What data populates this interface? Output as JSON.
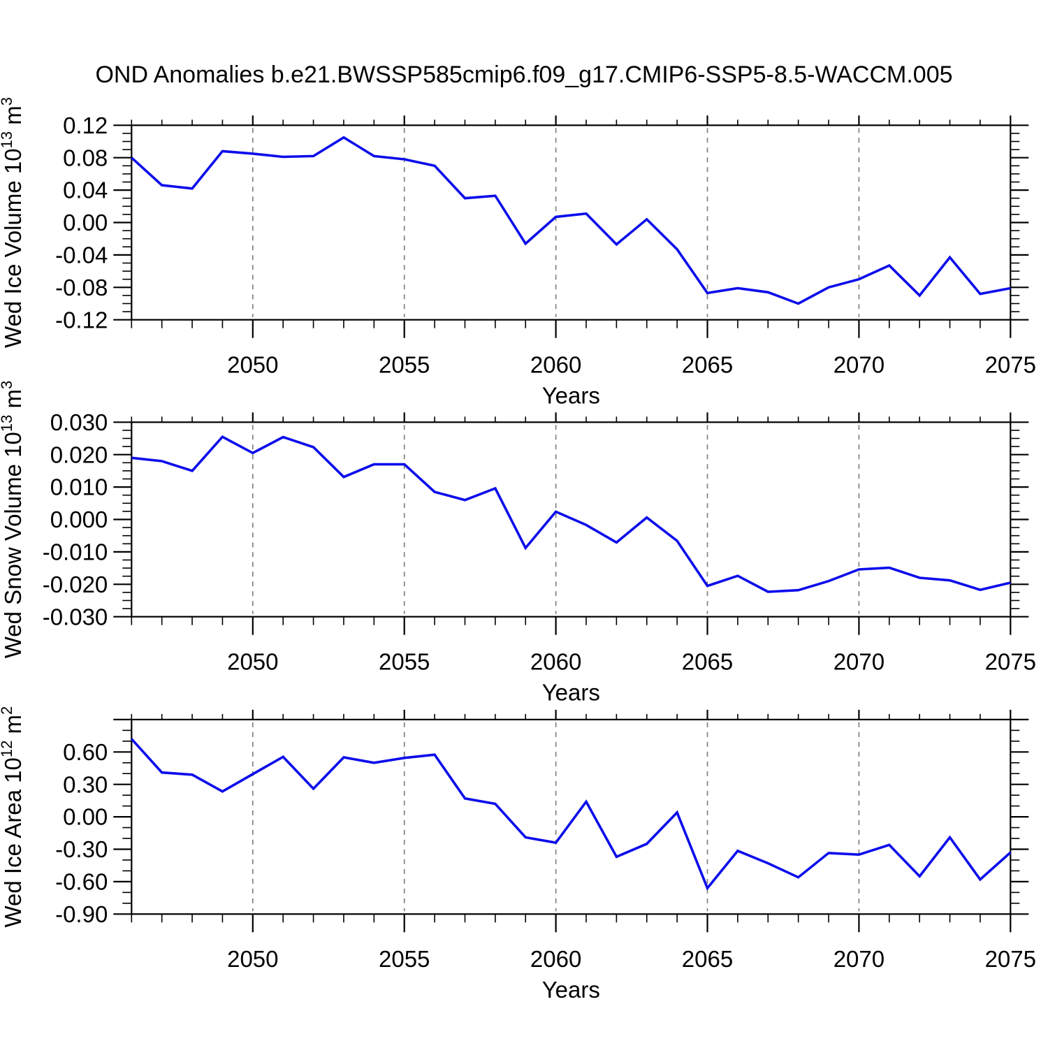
{
  "title": "OND Anomalies b.e21.BWSSP585cmip6.f09_g17.CMIP6-SSP5-8.5-WACCM.005",
  "styles": {
    "line_color": "#0d0deb",
    "grid_color": "#7a7a7a",
    "axis_color": "#000000",
    "text_color": "#000000"
  },
  "chart_data": [
    {
      "type": "line",
      "name": "wed-ice-volume",
      "ylabel_plain": "Wed Ice Volume 10^13 m^3",
      "ylabel_parts": [
        {
          "t": "Wed Ice Volume 10",
          "sup": false
        },
        {
          "t": "13",
          "sup": true
        },
        {
          "t": " m",
          "sup": false
        },
        {
          "t": "3",
          "sup": true
        }
      ],
      "xlabel": "Years",
      "x": [
        2046,
        2047,
        2048,
        2049,
        2050,
        2051,
        2052,
        2053,
        2054,
        2055,
        2056,
        2057,
        2058,
        2059,
        2060,
        2061,
        2062,
        2063,
        2064,
        2065,
        2066,
        2067,
        2068,
        2069,
        2070,
        2071,
        2072,
        2073,
        2074,
        2075
      ],
      "values": [
        0.08,
        0.046,
        0.042,
        0.088,
        0.085,
        0.081,
        0.082,
        0.105,
        0.082,
        0.078,
        0.07,
        0.03,
        0.033,
        -0.026,
        0.007,
        0.011,
        -0.027,
        0.004,
        -0.033,
        -0.087,
        -0.081,
        -0.086,
        -0.1,
        -0.08,
        -0.07,
        -0.053,
        -0.09,
        -0.043,
        -0.088,
        -0.081
      ],
      "xlim": [
        2046,
        2075
      ],
      "ylim": [
        -0.12,
        0.12
      ],
      "ytick_values": [
        0.12,
        0.08,
        0.04,
        0.0,
        -0.04,
        -0.08,
        -0.12
      ],
      "ytick_labels": [
        "0.12",
        "0.08",
        "0.04",
        "0.00",
        "-0.04",
        "-0.08",
        "-0.12"
      ],
      "yminor_step": 0.01,
      "yminor_per_major": 4,
      "xtick_values": [
        2050,
        2055,
        2060,
        2065,
        2070,
        2075
      ],
      "xtick_labels": [
        "2050",
        "2055",
        "2060",
        "2065",
        "2070",
        "2075"
      ],
      "xminor_step": 1,
      "grid_x": [
        2050,
        2055,
        2060,
        2065,
        2070
      ]
    },
    {
      "type": "line",
      "name": "wed-snow-volume",
      "ylabel_plain": "Wed Snow Volume 10^13 m^3",
      "ylabel_parts": [
        {
          "t": "Wed Snow Volume 10",
          "sup": false
        },
        {
          "t": "13",
          "sup": true
        },
        {
          "t": " m",
          "sup": false
        },
        {
          "t": "3",
          "sup": true
        }
      ],
      "xlabel": "Years",
      "x": [
        2046,
        2047,
        2048,
        2049,
        2050,
        2051,
        2052,
        2053,
        2054,
        2055,
        2056,
        2057,
        2058,
        2059,
        2060,
        2061,
        2062,
        2063,
        2064,
        2065,
        2066,
        2067,
        2068,
        2069,
        2070,
        2071,
        2072,
        2073,
        2074,
        2075
      ],
      "values": [
        0.019,
        0.018,
        0.015,
        0.0255,
        0.0205,
        0.0254,
        0.0223,
        0.0131,
        0.017,
        0.017,
        0.0085,
        0.006,
        0.0096,
        -0.0088,
        0.0024,
        -0.0017,
        -0.0071,
        0.0006,
        -0.0066,
        -0.0205,
        -0.0174,
        -0.0223,
        -0.0218,
        -0.019,
        -0.0154,
        -0.0149,
        -0.018,
        -0.0188,
        -0.0217,
        -0.0195
      ],
      "xlim": [
        2046,
        2075
      ],
      "ylim": [
        -0.03,
        0.03
      ],
      "ytick_values": [
        0.03,
        0.02,
        0.01,
        0.0,
        -0.01,
        -0.02,
        -0.03
      ],
      "ytick_labels": [
        "0.030",
        "0.020",
        "0.010",
        "0.000",
        "-0.010",
        "-0.020",
        "-0.030"
      ],
      "yminor_step": 0.0025,
      "yminor_per_major": 4,
      "xtick_values": [
        2050,
        2055,
        2060,
        2065,
        2070,
        2075
      ],
      "xtick_labels": [
        "2050",
        "2055",
        "2060",
        "2065",
        "2070",
        "2075"
      ],
      "xminor_step": 1,
      "grid_x": [
        2050,
        2055,
        2060,
        2065,
        2070
      ]
    },
    {
      "type": "line",
      "name": "wed-ice-area",
      "ylabel_plain": "Wed Ice Area 10^12 m^2",
      "ylabel_parts": [
        {
          "t": "Wed Ice Area 10",
          "sup": false
        },
        {
          "t": "12",
          "sup": true
        },
        {
          "t": " m",
          "sup": false
        },
        {
          "t": "2",
          "sup": true
        }
      ],
      "xlabel": "Years",
      "x": [
        2046,
        2047,
        2048,
        2049,
        2050,
        2051,
        2052,
        2053,
        2054,
        2055,
        2056,
        2057,
        2058,
        2059,
        2060,
        2061,
        2062,
        2063,
        2064,
        2065,
        2066,
        2067,
        2068,
        2069,
        2070,
        2071,
        2072,
        2073,
        2074,
        2075
      ],
      "values": [
        0.72,
        0.41,
        0.39,
        0.235,
        0.395,
        0.555,
        0.26,
        0.55,
        0.5,
        0.545,
        0.575,
        0.17,
        0.12,
        -0.19,
        -0.24,
        0.14,
        -0.37,
        -0.25,
        0.04,
        -0.66,
        -0.315,
        -0.43,
        -0.56,
        -0.335,
        -0.35,
        -0.26,
        -0.55,
        -0.19,
        -0.58,
        -0.33
      ],
      "xlim": [
        2046,
        2075
      ],
      "ylim": [
        -0.9,
        0.9
      ],
      "ytick_values": [
        0.9,
        0.6,
        0.3,
        0.0,
        -0.3,
        -0.6,
        -0.9
      ],
      "ytick_labels": [
        "",
        "0.60",
        "0.30",
        "0.00",
        "-0.30",
        "-0.60",
        "-0.90"
      ],
      "yminor_step": 0.1,
      "yminor_per_major": 3,
      "xtick_values": [
        2050,
        2055,
        2060,
        2065,
        2070,
        2075
      ],
      "xtick_labels": [
        "2050",
        "2055",
        "2060",
        "2065",
        "2070",
        "2075"
      ],
      "xminor_step": 1,
      "grid_x": [
        2050,
        2055,
        2060,
        2065,
        2070
      ]
    }
  ]
}
